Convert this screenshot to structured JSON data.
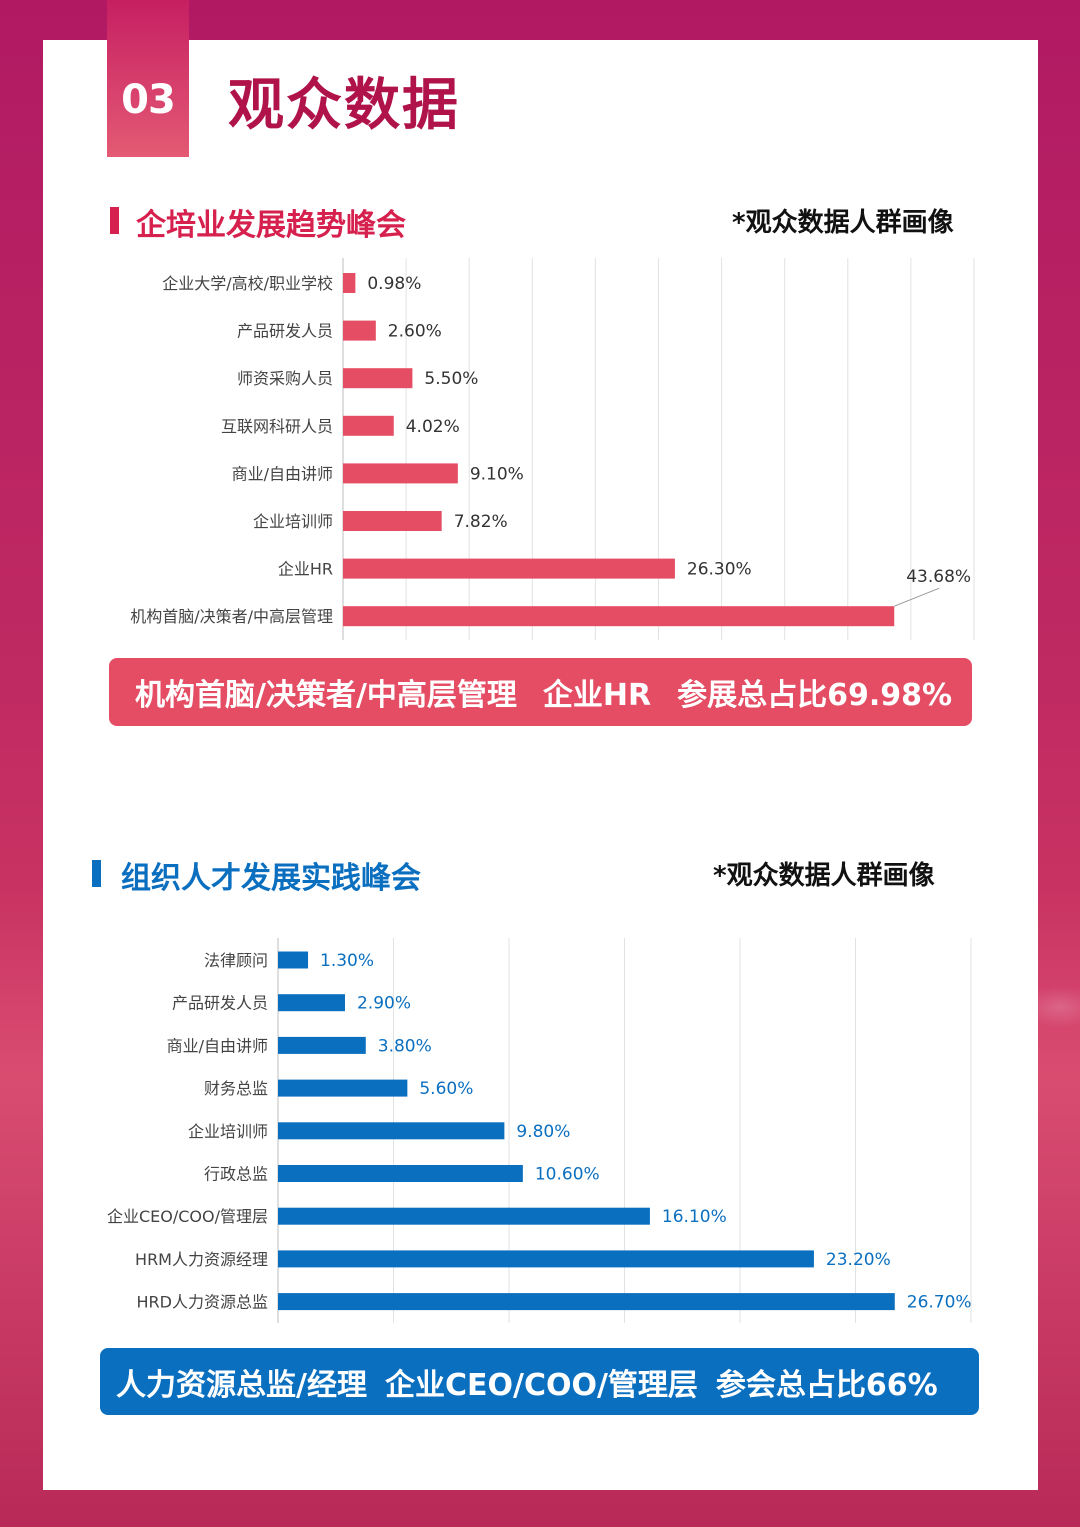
{
  "header": {
    "section_number": "03",
    "title": "观众数据"
  },
  "section1": {
    "title": "企培业发展趋势峰会",
    "note": "*观众数据人群画像",
    "banner": [
      "机构首脑/决策者/中高层管理",
      "企业HR",
      "参展总占比69.98%"
    ]
  },
  "section2": {
    "title": "组织人才发展实践峰会",
    "note": "*观众数据人群画像",
    "banner": [
      "人力资源总监/经理",
      "企业CEO/COO/管理层",
      "参会总占比66%"
    ]
  },
  "colors": {
    "accent1": "#e44d63",
    "accent2": "#0b6fc0",
    "title_red": "#b0124a"
  },
  "chart_data": [
    {
      "type": "bar",
      "orientation": "horizontal",
      "categories": [
        "企业大学/高校/职业学校",
        "产品研发人员",
        "师资采购人员",
        "互联网科研人员",
        "商业/自由讲师",
        "企业培训师",
        "企业HR",
        "机构首脑/决策者/中高层管理"
      ],
      "values": [
        0.98,
        2.6,
        5.5,
        4.02,
        9.1,
        7.82,
        26.3,
        43.68
      ],
      "data_labels": [
        "0.98%",
        "2.60%",
        "5.50%",
        "4.02%",
        "9.10%",
        "7.82%",
        "26.30%",
        "43.68%"
      ],
      "xlim": [
        0,
        50
      ],
      "grid": true,
      "color": "#e44d63"
    },
    {
      "type": "bar",
      "orientation": "horizontal",
      "categories": [
        "法律顾问",
        "产品研发人员",
        "商业/自由讲师",
        "财务总监",
        "企业培训师",
        "行政总监",
        "企业CEO/COO/管理层",
        "HRM人力资源经理",
        "HRD人力资源总监"
      ],
      "values": [
        1.3,
        2.9,
        3.8,
        5.6,
        9.8,
        10.6,
        16.1,
        23.2,
        26.7
      ],
      "data_labels": [
        "1.30%",
        "2.90%",
        "3.80%",
        "5.60%",
        "9.80%",
        "10.60%",
        "16.10%",
        "23.20%",
        "26.70%"
      ],
      "xlim": [
        0,
        30
      ],
      "grid": true,
      "color": "#0b6fc0"
    }
  ]
}
